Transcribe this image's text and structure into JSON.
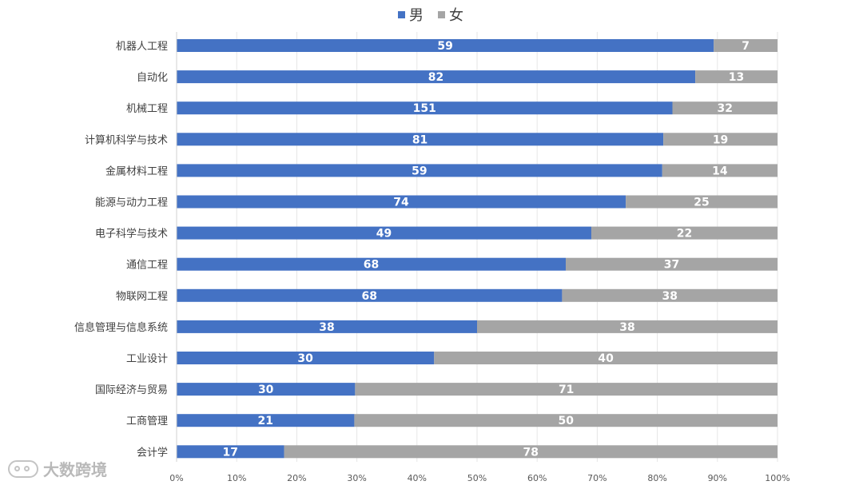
{
  "chart_data": {
    "type": "bar",
    "orientation": "horizontal",
    "stacked": "percent",
    "title": "",
    "categories": [
      "机器人工程",
      "自动化",
      "机械工程",
      "计算机科学与技术",
      "金属材料工程",
      "能源与动力工程",
      "电子科学与技术",
      "通信工程",
      "物联网工程",
      "信息管理与信息系统",
      "工业设计",
      "国际经济与贸易",
      "工商管理",
      "会计学"
    ],
    "series": [
      {
        "name": "男",
        "color": "#4472c4",
        "values": [
          59,
          82,
          151,
          81,
          59,
          74,
          49,
          68,
          68,
          38,
          30,
          30,
          21,
          17
        ]
      },
      {
        "name": "女",
        "color": "#a5a5a5",
        "values": [
          7,
          13,
          32,
          19,
          14,
          25,
          22,
          37,
          38,
          38,
          40,
          71,
          50,
          78
        ]
      }
    ],
    "xaxis": {
      "ticks": [
        "0%",
        "10%",
        "20%",
        "30%",
        "40%",
        "50%",
        "60%",
        "70%",
        "80%",
        "90%",
        "100%"
      ],
      "range": [
        0,
        100
      ]
    },
    "legend": {
      "position": "top"
    },
    "grid": true
  },
  "watermark": {
    "text": "大数跨境"
  }
}
